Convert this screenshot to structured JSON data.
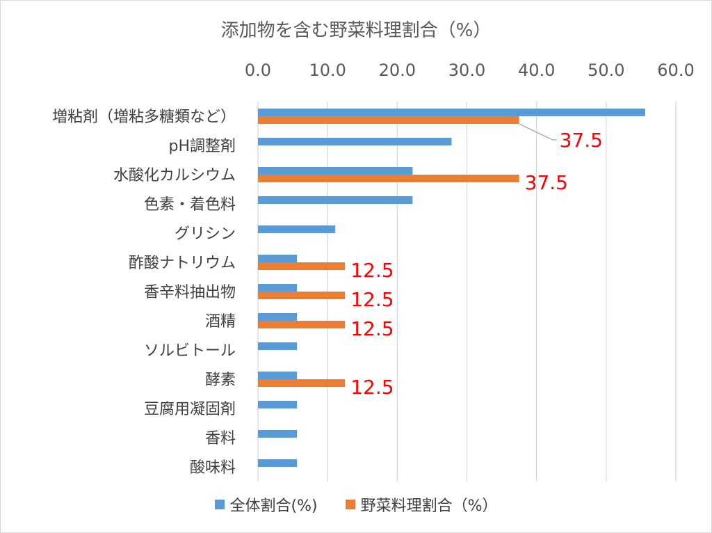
{
  "chart_data": {
    "type": "bar",
    "orientation": "horizontal",
    "title": "添加物を含む野菜料理割合（%）",
    "categories": [
      "増粘剤（増粘多糖類など）",
      "pH調整剤",
      "水酸化カルシウム",
      "色素・着色料",
      "グリシン",
      "酢酸ナトリウム",
      "香辛料抽出物",
      "酒精",
      "ソルビトール",
      "酵素",
      "豆腐用凝固剤",
      "香料",
      "酸味料"
    ],
    "series": [
      {
        "name": "全体割合(%)",
        "color": "#5b9bd5",
        "values": [
          55.6,
          27.8,
          22.2,
          22.2,
          11.1,
          5.6,
          5.6,
          5.6,
          5.6,
          5.6,
          5.6,
          5.6,
          5.6
        ]
      },
      {
        "name": "野菜料理割合（%）",
        "color": "#ed7d31",
        "values": [
          37.5,
          0,
          37.5,
          0,
          0,
          12.5,
          12.5,
          12.5,
          0,
          12.5,
          0,
          0,
          0
        ]
      }
    ],
    "data_labels": [
      "37.5",
      "",
      "37.5",
      "",
      "",
      "12.5",
      "12.5",
      "12.5",
      "",
      "12.5",
      "",
      "",
      ""
    ],
    "label_color": "#ff0000",
    "xlim": [
      0,
      60
    ],
    "ticks": [
      "0.0",
      "10.0",
      "20.0",
      "30.0",
      "40.0",
      "50.0",
      "60.0"
    ],
    "grid": true,
    "legend": "bottom"
  }
}
